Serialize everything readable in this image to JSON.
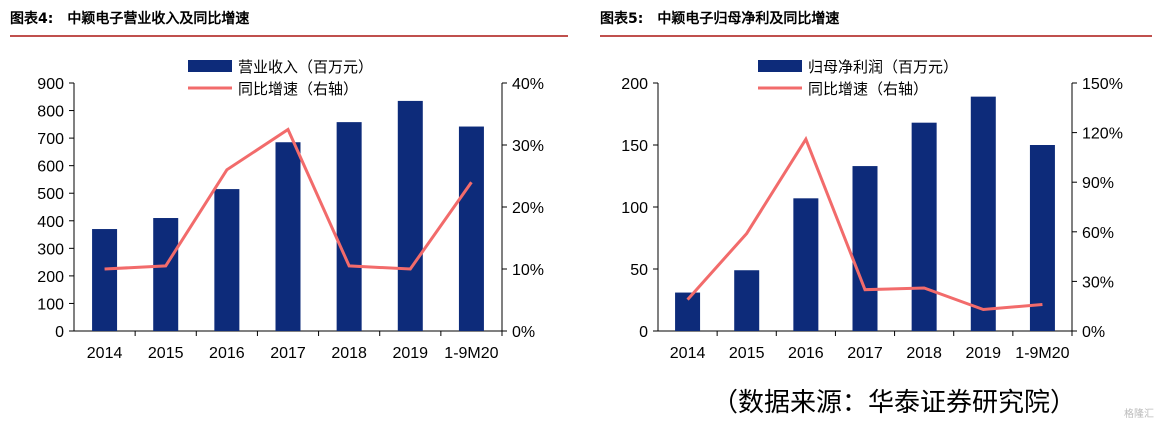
{
  "panels": [
    {
      "label": "图表4:",
      "title": "中颖电子营业收入及同比增速",
      "chart_data": {
        "type": "bar",
        "categories": [
          "2014",
          "2015",
          "2016",
          "2017",
          "2018",
          "2019",
          "1-9M20"
        ],
        "series": [
          {
            "name": "营业收入（百万元）",
            "type": "bar",
            "axis": "left",
            "values": [
              370,
              410,
              515,
              685,
              758,
              835,
              742
            ]
          },
          {
            "name": "同比增速（右轴）",
            "type": "line",
            "axis": "right",
            "values": [
              0.1,
              0.105,
              0.26,
              0.325,
              0.105,
              0.1,
              0.24
            ]
          }
        ],
        "y_left": {
          "min": 0,
          "max": 900,
          "ticks": [
            0,
            100,
            200,
            300,
            400,
            500,
            600,
            700,
            800,
            900
          ],
          "tick_labels": [
            "0",
            "100",
            "200",
            "300",
            "400",
            "500",
            "600",
            "700",
            "800",
            "900"
          ]
        },
        "y_right": {
          "min": 0,
          "max": 0.4,
          "ticks": [
            0,
            0.1,
            0.2,
            0.3,
            0.4
          ],
          "tick_labels": [
            "0%",
            "10%",
            "20%",
            "30%",
            "40%"
          ]
        },
        "legend": "top-center",
        "colors": {
          "bar": "#0d2b7a",
          "line": "#f26b6b"
        }
      }
    },
    {
      "label": "图表5:",
      "title": "中颖电子归母净利及同比增速",
      "chart_data": {
        "type": "bar",
        "categories": [
          "2014",
          "2015",
          "2016",
          "2017",
          "2018",
          "2019",
          "1-9M20"
        ],
        "series": [
          {
            "name": "归母净利润（百万元）",
            "type": "bar",
            "axis": "left",
            "values": [
              31,
              49,
              107,
              133,
              168,
              189,
              150
            ]
          },
          {
            "name": "同比增速（右轴）",
            "type": "line",
            "axis": "right",
            "values": [
              0.19,
              0.59,
              1.16,
              0.25,
              0.26,
              0.13,
              0.16
            ]
          }
        ],
        "y_left": {
          "min": 0,
          "max": 200,
          "ticks": [
            0,
            50,
            100,
            150,
            200
          ],
          "tick_labels": [
            "0",
            "50",
            "100",
            "150",
            "200"
          ]
        },
        "y_right": {
          "min": 0,
          "max": 1.5,
          "ticks": [
            0,
            0.3,
            0.6,
            0.9,
            1.2,
            1.5
          ],
          "tick_labels": [
            "0%",
            "30%",
            "60%",
            "90%",
            "120%",
            "150%"
          ]
        },
        "legend": "top-center",
        "colors": {
          "bar": "#0d2b7a",
          "line": "#f26b6b"
        }
      }
    }
  ],
  "source": "（数据来源：华泰证券研究院）",
  "watermark": "格隆汇"
}
